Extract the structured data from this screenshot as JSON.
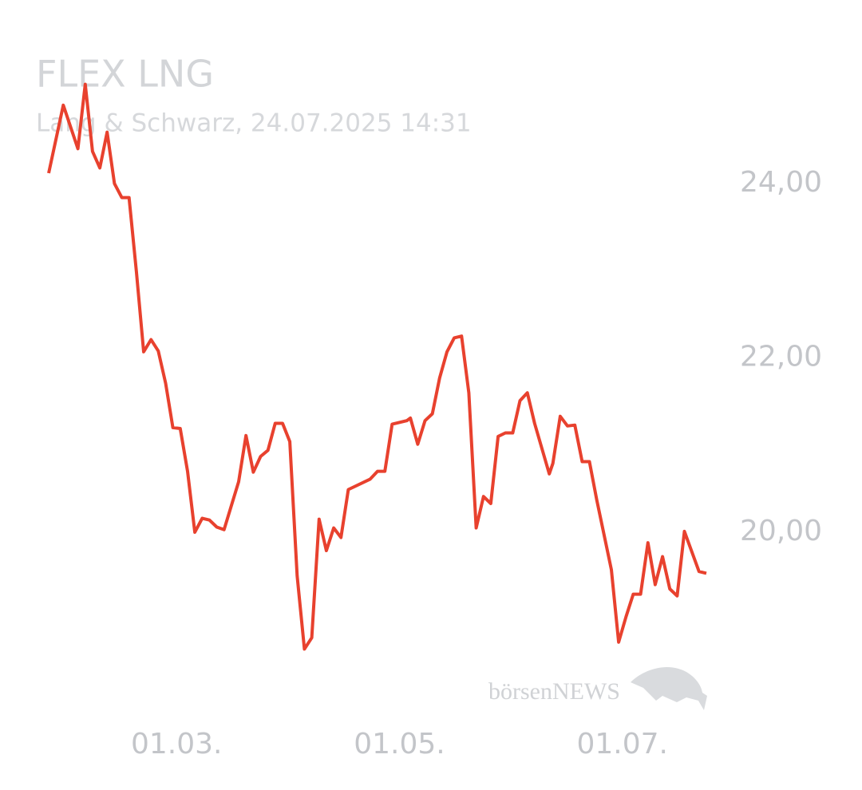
{
  "chart_data": {
    "type": "line",
    "title": "FLEX LNG",
    "subtitle": "Lang & Schwarz, 24.07.2025 14:31",
    "watermark": "börsenNEWS",
    "x": [
      "25.01.",
      "29.01.",
      "02.02.",
      "04.02.",
      "06.02.",
      "08.02.",
      "10.02.",
      "12.02.",
      "14.02.",
      "16.02.",
      "18.02.",
      "20.02.",
      "22.02.",
      "24.02.",
      "26.02.",
      "28.02.",
      "02.03.",
      "04.03.",
      "06.03.",
      "08.03.",
      "10.03.",
      "12.03.",
      "14.03.",
      "18.03.",
      "20.03.",
      "22.03.",
      "24.03.",
      "26.03.",
      "28.03.",
      "30.03.",
      "01.04.",
      "03.04.",
      "05.04.",
      "07.04.",
      "09.04.",
      "11.04.",
      "13.04.",
      "15.04.",
      "17.04.",
      "23.04.",
      "25.04.",
      "27.04.",
      "29.04.",
      "03.05.",
      "04.05.",
      "06.05.",
      "08.05.",
      "10.05.",
      "12.05.",
      "14.05.",
      "16.05.",
      "18.05.",
      "20.05.",
      "22.05.",
      "24.05.",
      "26.05.",
      "28.05.",
      "30.05.",
      "01.06.",
      "03.06.",
      "05.06.",
      "07.06.",
      "11.06.",
      "12.06.",
      "14.06.",
      "16.06.",
      "18.06.",
      "20.06.",
      "22.06.",
      "24.06.",
      "28.06.",
      "30.06.",
      "02.07.",
      "04.07.",
      "06.07.",
      "08.07.",
      "10.07.",
      "12.07.",
      "14.07.",
      "16.07.",
      "18.07.",
      "22.07.",
      "24.07."
    ],
    "series": [
      {
        "name": "FLEX LNG",
        "color": "#e8412e",
        "values": [
          24.12,
          24.9,
          24.4,
          25.14,
          24.37,
          24.18,
          24.59,
          24.0,
          23.84,
          23.84,
          22.99,
          22.07,
          22.21,
          22.08,
          21.71,
          21.2,
          21.19,
          20.7,
          20.0,
          20.16,
          20.14,
          20.06,
          20.03,
          20.58,
          21.11,
          20.69,
          20.87,
          20.94,
          21.25,
          21.25,
          21.04,
          19.5,
          18.66,
          18.79,
          20.15,
          19.79,
          20.05,
          19.94,
          20.49,
          20.61,
          20.7,
          20.7,
          21.24,
          21.28,
          21.31,
          21.01,
          21.28,
          21.36,
          21.77,
          22.07,
          22.23,
          22.25,
          21.6,
          20.05,
          20.41,
          20.33,
          21.1,
          21.14,
          21.14,
          21.51,
          21.6,
          21.25,
          20.67,
          20.79,
          21.33,
          21.22,
          21.23,
          20.81,
          20.81,
          20.37,
          19.57,
          18.74,
          19.03,
          19.29,
          19.29,
          19.88,
          19.4,
          19.72,
          19.35,
          19.27,
          20.01,
          19.55,
          19.53
        ]
      }
    ],
    "xlim": [
      "25.01.",
      "24.07."
    ],
    "xticks": [
      "01.03.",
      "01.05.",
      "01.07."
    ],
    "ylim": [
      18,
      25.2
    ],
    "yticks": [
      {
        "value": 20,
        "label": "20,00"
      },
      {
        "value": 22,
        "label": "22,00"
      },
      {
        "value": 24,
        "label": "24,00"
      }
    ]
  }
}
